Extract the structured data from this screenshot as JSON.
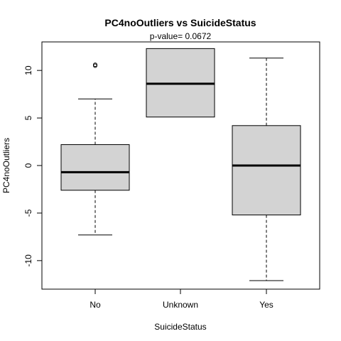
{
  "chart_data": {
    "type": "box",
    "title": "PC4noOutliers  vs  SuicideStatus",
    "subtitle": "p-value= 0.0672",
    "xlabel": "SuicideStatus",
    "ylabel": "PC4noOutliers",
    "ylim": [
      -13,
      13
    ],
    "yticks": [
      -10,
      -5,
      0,
      5,
      10
    ],
    "categories": [
      "No",
      "Unknown",
      "Yes"
    ],
    "boxes": [
      {
        "category": "No",
        "whisker_low": -7.3,
        "q1": -2.6,
        "median": -0.7,
        "q3": 2.2,
        "whisker_high": 7.0,
        "outliers": [
          10.5,
          10.6
        ]
      },
      {
        "category": "Unknown",
        "whisker_low": 5.1,
        "q1": 5.1,
        "median": 8.6,
        "q3": 12.3,
        "whisker_high": 12.3,
        "outliers": []
      },
      {
        "category": "Yes",
        "whisker_low": -12.1,
        "q1": -5.2,
        "median": 0.0,
        "q3": 4.2,
        "whisker_high": 11.3,
        "outliers": []
      }
    ],
    "box_fill": "#d3d3d3",
    "line_color": "#000000",
    "grid": false,
    "legend": "none"
  }
}
